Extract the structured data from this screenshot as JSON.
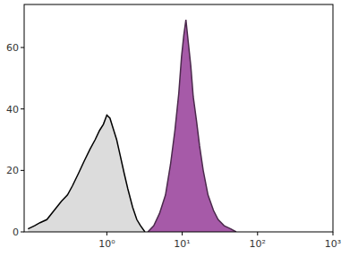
{
  "chart_data": {
    "type": "area",
    "log": "x",
    "xlim": [
      0.08,
      1000
    ],
    "xticks": [
      {
        "value": 1,
        "label": "10⁰"
      },
      {
        "value": 10,
        "label": "10¹"
      },
      {
        "value": 100,
        "label": "10²"
      },
      {
        "value": 1000,
        "label": "10³"
      }
    ],
    "ylim": [
      0,
      74
    ],
    "yticks": [
      0,
      20,
      40,
      60
    ],
    "grid": false,
    "series": [
      {
        "color": "#dcdcdc",
        "line_style": "solid",
        "x": [
          0.09,
          0.11,
          0.13,
          0.16,
          0.2,
          0.25,
          0.3,
          0.35,
          0.42,
          0.5,
          0.6,
          0.7,
          0.8,
          0.9,
          1.0,
          1.1,
          1.2,
          1.35,
          1.5,
          1.7,
          1.9,
          2.2,
          2.5,
          2.8,
          3.2
        ],
        "values": [
          1,
          2,
          3,
          4,
          7,
          10,
          12,
          15,
          19,
          23,
          27,
          30,
          33,
          35,
          38,
          37,
          34,
          30,
          25,
          19,
          14,
          8,
          4,
          2,
          0
        ]
      },
      {
        "color": "#a65aa8",
        "line_style": "solid",
        "x": [
          3.5,
          4.2,
          5,
          6,
          7,
          8,
          9,
          9.8,
          10.5,
          11.2,
          12,
          13,
          14,
          15.5,
          17,
          19,
          22,
          26,
          30,
          36,
          44,
          52
        ],
        "values": [
          0,
          2,
          6,
          12,
          22,
          33,
          45,
          57,
          64,
          69,
          62,
          54,
          44,
          36,
          28,
          20,
          12,
          7,
          4,
          2,
          1,
          0
        ]
      }
    ]
  }
}
